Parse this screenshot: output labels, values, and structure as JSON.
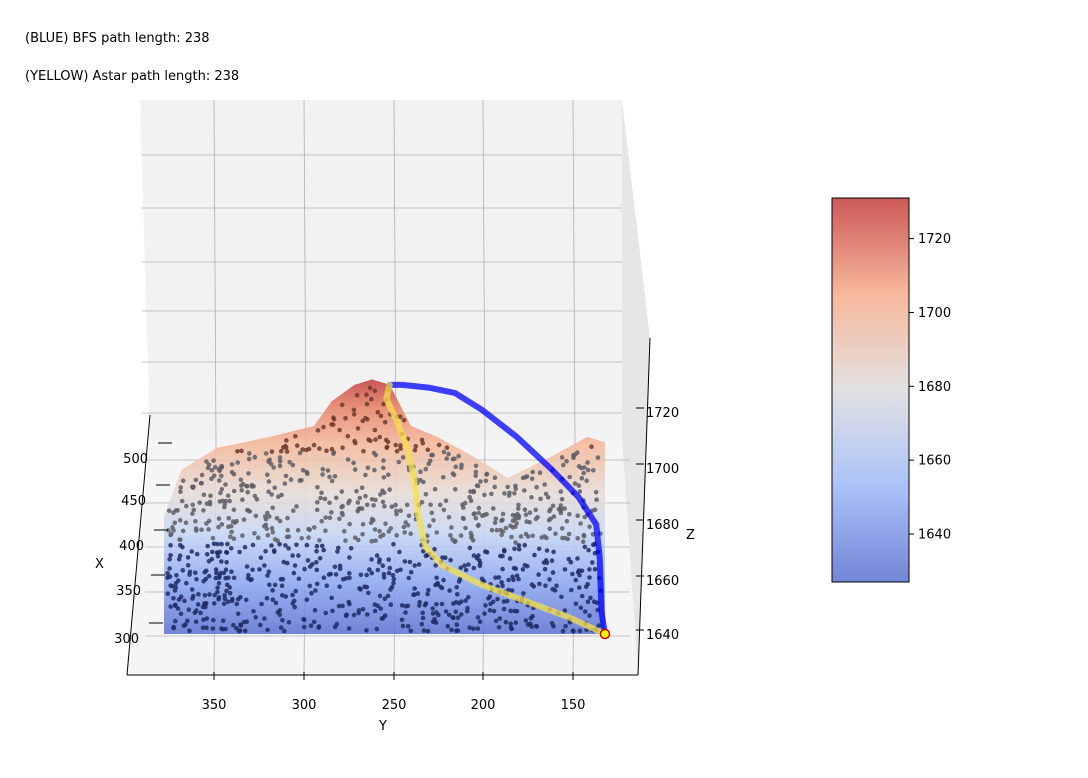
{
  "annotations": {
    "bfs": "(BLUE) BFS path length: 238",
    "astar": "(YELLOW) Astar path length: 238"
  },
  "chart_data": {
    "type": "surface3d",
    "axes": {
      "x": {
        "label": "X",
        "ticks": [
          300,
          350,
          400,
          450,
          500
        ],
        "range": [
          280,
          530
        ]
      },
      "y": {
        "label": "Y",
        "ticks": [
          350,
          300,
          250,
          200,
          150
        ],
        "range": [
          380,
          130
        ],
        "inverted": true
      },
      "z": {
        "label": "Z",
        "ticks": [
          1640,
          1660,
          1680,
          1700,
          1720
        ],
        "range": [
          1632,
          1735
        ]
      }
    },
    "colorbar": {
      "colormap": "coolwarm",
      "ticks": [
        1640,
        1660,
        1680,
        1700,
        1720
      ],
      "range": [
        1627,
        1731
      ],
      "colors": [
        "#5a70d0",
        "#9cb8f8",
        "#dddcdc",
        "#f6ab8a",
        "#c33b3b"
      ]
    },
    "surface": {
      "front_edge_y": [
        380,
        130
      ],
      "front_edge_z": 1640,
      "peak": {
        "y": 262,
        "z": 1731
      }
    },
    "series": [
      {
        "name": "BFS path",
        "color": "#0000ff",
        "points": [
          [
            130,
            1640
          ],
          [
            132,
            1648
          ],
          [
            133,
            1668
          ],
          [
            135,
            1680
          ],
          [
            145,
            1690
          ],
          [
            160,
            1700
          ],
          [
            180,
            1712
          ],
          [
            200,
            1722
          ],
          [
            215,
            1728
          ],
          [
            230,
            1730
          ],
          [
            245,
            1731
          ],
          [
            252,
            1731
          ]
        ]
      },
      {
        "name": "Astar path",
        "color": "#f5e04a",
        "points": [
          [
            130,
            1640
          ],
          [
            150,
            1646
          ],
          [
            175,
            1652
          ],
          [
            200,
            1658
          ],
          [
            222,
            1665
          ],
          [
            232,
            1672
          ],
          [
            236,
            1684
          ],
          [
            238,
            1696
          ],
          [
            242,
            1708
          ],
          [
            248,
            1718
          ],
          [
            254,
            1726
          ],
          [
            252,
            1731
          ]
        ]
      }
    ],
    "start_marker": {
      "y": 130,
      "z": 1640,
      "color": "#ffff00",
      "edge": "#cc0000"
    },
    "grid": true
  }
}
